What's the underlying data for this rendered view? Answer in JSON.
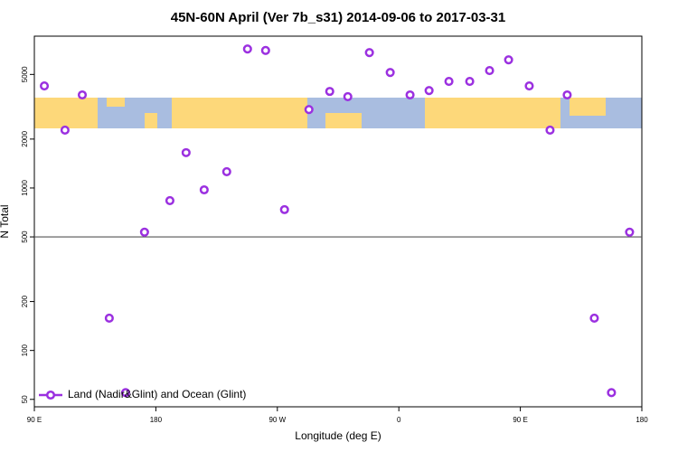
{
  "chart_data": {
    "type": "scatter",
    "title": "45N-60N April (Ver 7b_s31)   2014-09-06 to 2017-03-31",
    "x_label": "Longitude (deg E)",
    "y_label": "N Total",
    "series": [
      {
        "name": "Land (Nadir&Glint) and Ocean (Glint)",
        "color": "#9b30e0",
        "x": [
          97.4,
          112.7,
          125.5,
          145.5,
          157.6,
          171.6,
          190.4,
          202.4,
          215.8,
          232.5,
          247.9,
          261.3,
          275.3,
          293.4,
          308.8,
          322.2,
          338.2,
          353.6,
          368.3,
          382.4,
          397.1,
          412.5,
          427.2,
          441.3,
          456.6,
          472,
          484.7,
          504.8,
          517.5,
          530.9
        ],
        "values": [
          4250,
          2270,
          3740,
          158,
          55,
          535,
          836,
          1650,
          974,
          1260,
          7170,
          7020,
          736,
          3040,
          3930,
          3650,
          6810,
          5140,
          3740,
          3980,
          4530,
          4530,
          5280,
          6150,
          4250,
          2270,
          3740,
          158,
          55,
          535
        ]
      }
    ],
    "xlim": [
      90,
      540
    ],
    "xticks": [
      {
        "value": 90,
        "label": "90 E"
      },
      {
        "value": 180,
        "label": "180"
      },
      {
        "value": 270,
        "label": "90 W"
      },
      {
        "value": 360,
        "label": "0"
      },
      {
        "value": 450,
        "label": "90 E"
      },
      {
        "value": 540,
        "label": "180"
      }
    ],
    "ylim": [
      45,
      8600
    ],
    "yticks": [
      50,
      100,
      200,
      500,
      1000,
      2000,
      5000
    ],
    "ylog": true,
    "hline": 500,
    "legend": "bottom-left"
  }
}
